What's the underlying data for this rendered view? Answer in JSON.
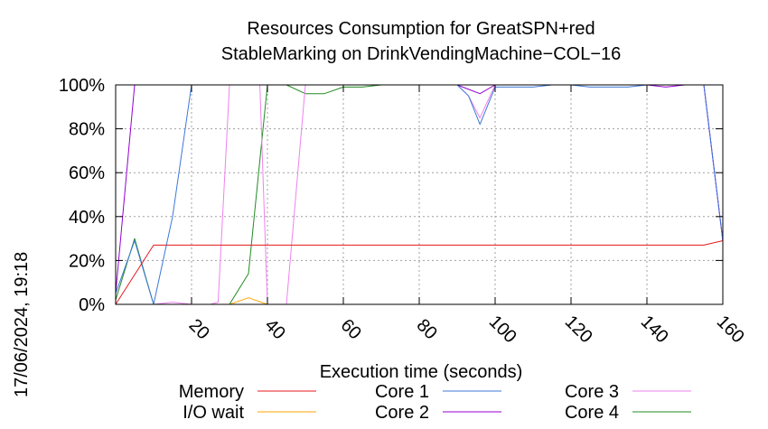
{
  "timestamp": "17/06/2024, 19:18",
  "chart_data": {
    "type": "line",
    "title": [
      "Resources Consumption for GreatSPN+red",
      "StableMarking on DrinkVendingMachine−COL−16"
    ],
    "xlabel": "Execution time (seconds)",
    "ylabel": "",
    "xlim": [
      0,
      160
    ],
    "ylim": [
      0,
      100
    ],
    "x_ticks": [
      20,
      40,
      60,
      80,
      100,
      120,
      140,
      160
    ],
    "y_ticks": [
      0,
      20,
      40,
      60,
      80,
      100
    ],
    "y_tick_labels": [
      "0%",
      "20%",
      "40%",
      "60%",
      "80%",
      "100%"
    ],
    "grid": true,
    "legend_position": "bottom",
    "series": [
      {
        "name": "Memory",
        "color": "#e41a1c",
        "x": [
          0,
          10,
          20,
          40,
          60,
          80,
          100,
          120,
          140,
          155,
          160
        ],
        "y": [
          0,
          27,
          27,
          27,
          27,
          27,
          27,
          27,
          27,
          27,
          29
        ]
      },
      {
        "name": "I/O wait",
        "color": "#ffa500",
        "x": [
          0,
          5,
          10,
          15,
          20,
          25,
          30,
          35,
          40,
          42
        ],
        "y": [
          0,
          0,
          0,
          0,
          0,
          0,
          0,
          3,
          0,
          0
        ]
      },
      {
        "name": "Core 1",
        "color": "#3c78d8",
        "x": [
          0,
          5,
          10,
          15,
          20,
          25,
          30,
          35,
          40,
          45,
          50,
          55,
          60,
          65,
          70,
          75,
          80,
          85,
          90,
          93,
          96,
          100,
          105,
          110,
          115,
          120,
          125,
          130,
          135,
          140,
          145,
          150,
          155,
          160
        ],
        "y": [
          5,
          29,
          0,
          40,
          100,
          100,
          100,
          100,
          100,
          100,
          100,
          100,
          100,
          100,
          100,
          100,
          100,
          100,
          100,
          95,
          82,
          99,
          99,
          99,
          100,
          100,
          99,
          99,
          99,
          100,
          100,
          100,
          100,
          29
        ]
      },
      {
        "name": "Core 2",
        "color": "#9400d3",
        "x": [
          0,
          5,
          10,
          15,
          20,
          25,
          30,
          35,
          40,
          45,
          50,
          55,
          60,
          65,
          70,
          75,
          80,
          85,
          90,
          93,
          96,
          100,
          105,
          110,
          115,
          120,
          125,
          130,
          135,
          140,
          145,
          150,
          155,
          160
        ],
        "y": [
          5,
          100,
          100,
          100,
          100,
          100,
          100,
          100,
          100,
          100,
          100,
          100,
          100,
          100,
          100,
          100,
          100,
          100,
          100,
          98,
          96,
          100,
          100,
          100,
          100,
          100,
          100,
          100,
          100,
          100,
          99,
          100,
          100,
          29
        ]
      },
      {
        "name": "Core 3",
        "color": "#ee82ee",
        "x": [
          0,
          5,
          10,
          15,
          20,
          25,
          27,
          30,
          35,
          38,
          40,
          45,
          50,
          55,
          60,
          65,
          70,
          75,
          80,
          85,
          90,
          93,
          96,
          100,
          105,
          110,
          115,
          120,
          125,
          130,
          135,
          140,
          145,
          150,
          155,
          160
        ],
        "y": [
          0,
          0,
          0,
          1,
          0,
          0,
          1,
          100,
          100,
          100,
          0,
          0,
          100,
          100,
          100,
          100,
          100,
          100,
          100,
          100,
          100,
          95,
          85,
          100,
          100,
          100,
          100,
          100,
          100,
          100,
          100,
          100,
          100,
          100,
          100,
          29
        ]
      },
      {
        "name": "Core 4",
        "color": "#228b22",
        "x": [
          0,
          5,
          10,
          15,
          20,
          25,
          30,
          35,
          40,
          45,
          50,
          55,
          60,
          65,
          70,
          75,
          80,
          85,
          90,
          95,
          100,
          105,
          110,
          115,
          120,
          125,
          130,
          135,
          140,
          145,
          150,
          155,
          160
        ],
        "y": [
          2,
          30,
          0,
          0,
          0,
          0,
          0,
          14,
          100,
          100,
          96,
          96,
          99,
          99,
          100,
          100,
          100,
          100,
          100,
          100,
          100,
          100,
          100,
          100,
          100,
          100,
          100,
          100,
          100,
          100,
          100,
          100,
          100
        ]
      }
    ]
  }
}
